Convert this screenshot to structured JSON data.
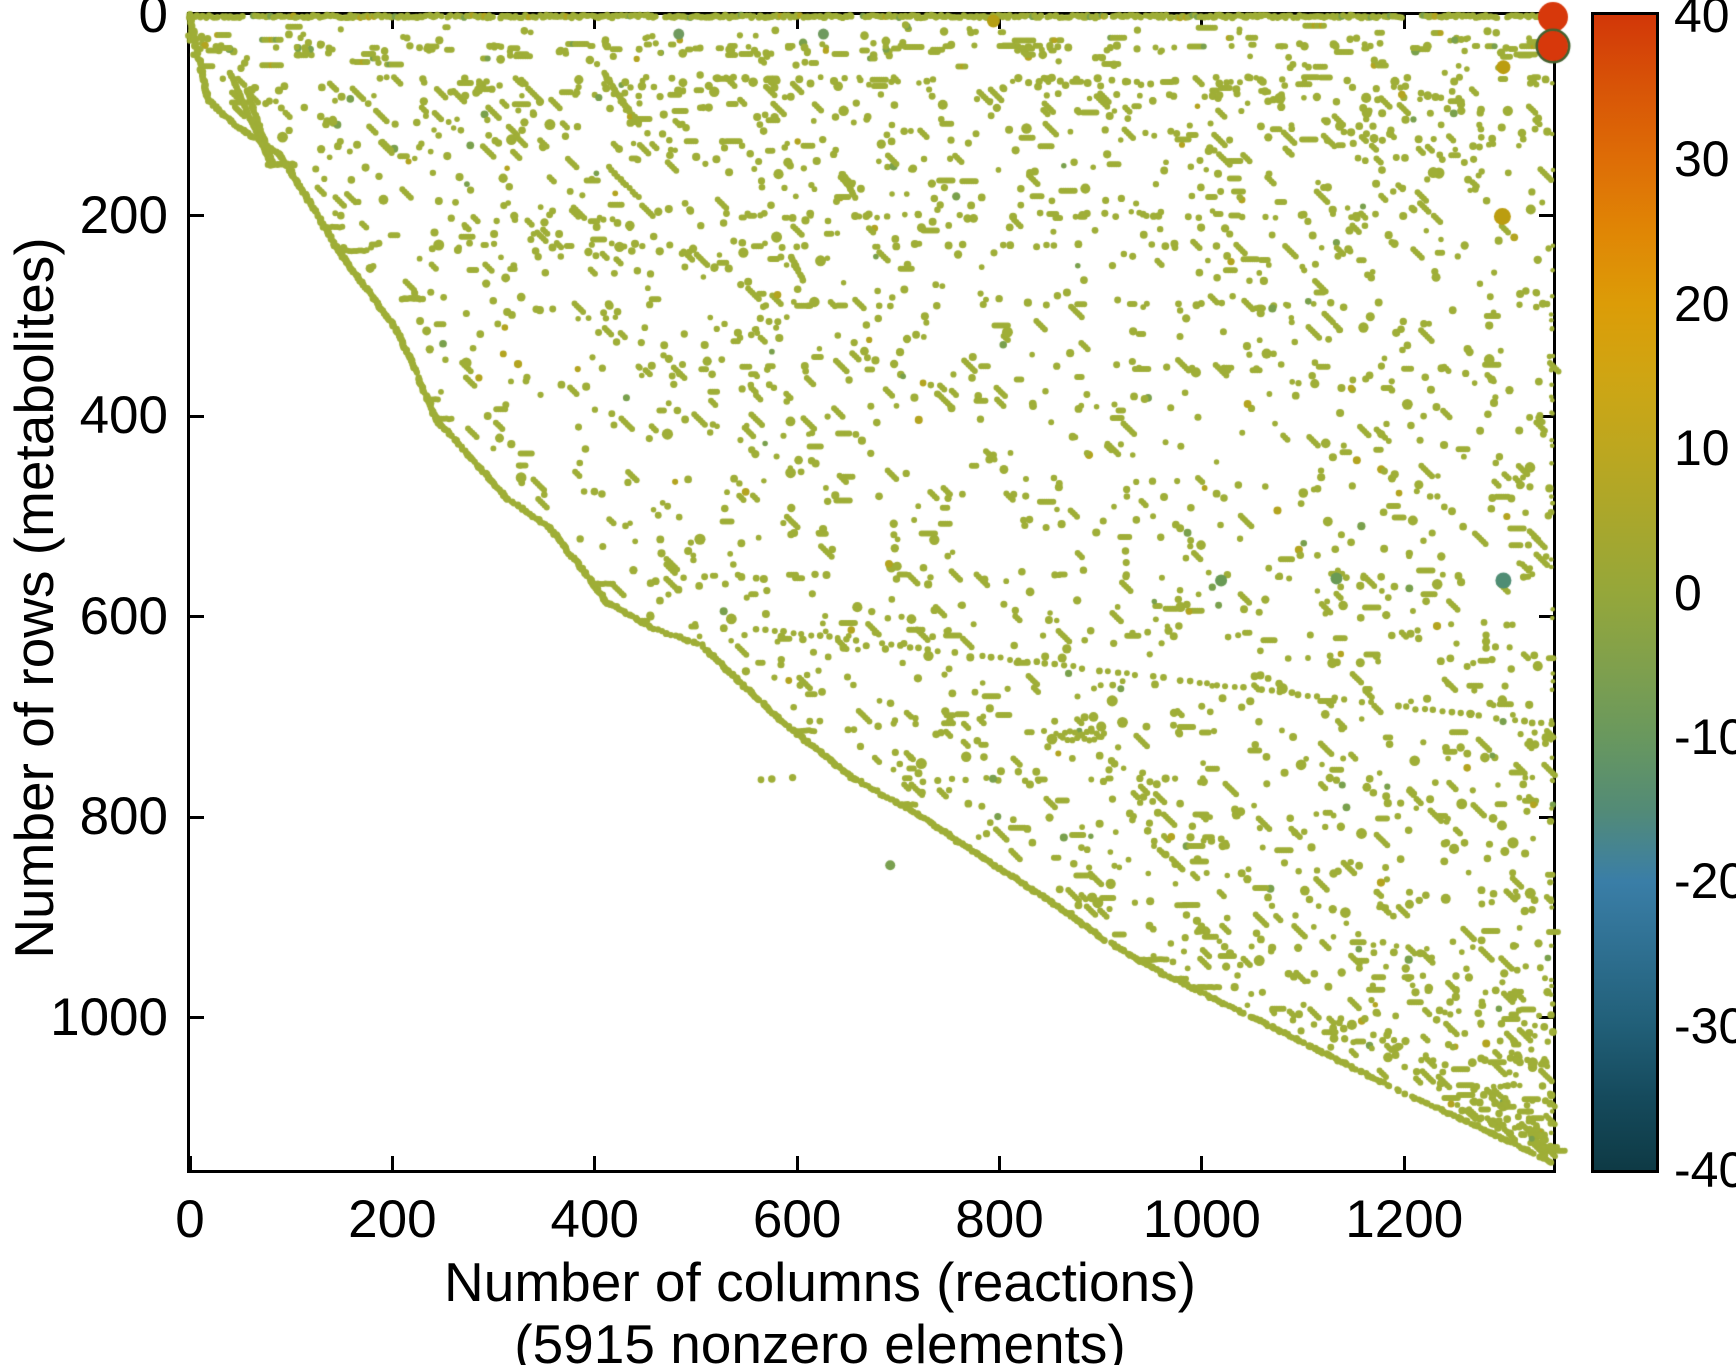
{
  "chart_data": {
    "type": "scatter",
    "title": "",
    "description": "Sparsity pattern (spy plot) of a metabolic stoichiometric matrix; each marker is a nonzero matrix entry, colored and sized by its coefficient value",
    "xlabel": "Number of columns (reactions)",
    "xlabel_note": "(5915 nonzero elements)",
    "ylabel": "Number of rows (metabolites)",
    "nonzero_elements": 5915,
    "xlim": [
      0,
      1347
    ],
    "ylim": [
      0,
      1152
    ],
    "y_axis_reversed": true,
    "grid": false,
    "x_ticks": [
      0,
      200,
      400,
      600,
      800,
      1000,
      1200
    ],
    "y_ticks": [
      0,
      200,
      400,
      600,
      800,
      1000
    ],
    "marker_color": "#9fae37",
    "marker_tints": [
      "#79a04c",
      "#b3a41f"
    ],
    "colorbar": {
      "min": -40,
      "max": 40,
      "ticks": [
        40,
        30,
        20,
        10,
        0,
        -10,
        -20,
        -30,
        -40
      ],
      "legend_position": "right",
      "gradient_stops": [
        {
          "value": 40,
          "color": "#d23708"
        },
        {
          "value": 35,
          "color": "#d85407"
        },
        {
          "value": 30,
          "color": "#de6d06"
        },
        {
          "value": 25,
          "color": "#e08605"
        },
        {
          "value": 20,
          "color": "#dc9c07"
        },
        {
          "value": 15,
          "color": "#cfa513"
        },
        {
          "value": 10,
          "color": "#bda71f"
        },
        {
          "value": 5,
          "color": "#a9a72c"
        },
        {
          "value": 0,
          "color": "#95a73a"
        },
        {
          "value": -5,
          "color": "#80a04c"
        },
        {
          "value": -10,
          "color": "#69985e"
        },
        {
          "value": -15,
          "color": "#538b76"
        },
        {
          "value": -20,
          "color": "#3a7ea7"
        },
        {
          "value": -25,
          "color": "#2e6f90"
        },
        {
          "value": -30,
          "color": "#215f78"
        },
        {
          "value": -35,
          "color": "#154a5c"
        },
        {
          "value": -40,
          "color": "#0e3a45"
        }
      ]
    },
    "notable_points": [
      {
        "col": 1347,
        "row": 2,
        "value": 40,
        "radius": 15,
        "color": "#d7380b"
      },
      {
        "col": 1347,
        "row": 31,
        "value": 38,
        "radius": 15,
        "color": "#d7380b",
        "ring": "#44612f"
      },
      {
        "col": 1298,
        "row": 52,
        "value": 14,
        "radius": 7,
        "color": "#bb9d10"
      },
      {
        "col": 1297,
        "row": 201,
        "value": 15,
        "radius": 8.5,
        "color": "#bb9d10"
      },
      {
        "col": 1019,
        "row": 564,
        "value": -8,
        "radius": 6,
        "color": "#699a55"
      },
      {
        "col": 1133,
        "row": 562,
        "value": -8,
        "radius": 6,
        "color": "#699a55"
      },
      {
        "col": 1298,
        "row": 564,
        "value": -12,
        "radius": 8,
        "color": "#4f8d74"
      },
      {
        "col": 794,
        "row": 6,
        "value": 12,
        "radius": 6.5,
        "color": "#b59f14"
      },
      {
        "col": 483,
        "row": 19,
        "value": -6,
        "radius": 5.5,
        "color": "#6f9a5f"
      },
      {
        "col": 626,
        "row": 19,
        "value": -6,
        "radius": 5.5,
        "color": "#6f9a5f"
      },
      {
        "col": 692,
        "row": 848,
        "value": -5,
        "radius": 5,
        "color": "#7aa050"
      }
    ],
    "pattern": {
      "seed": 1337,
      "dot_radius": 3.2,
      "diagonal": [
        [
          0,
          0
        ],
        [
          5,
          28
        ],
        [
          12,
          58
        ],
        [
          18,
          85
        ],
        [
          45,
          110
        ],
        [
          90,
          140
        ],
        [
          150,
          240
        ],
        [
          205,
          315
        ],
        [
          244,
          404
        ],
        [
          312,
          481
        ],
        [
          358,
          514
        ],
        [
          412,
          586
        ],
        [
          460,
          613
        ],
        [
          505,
          628
        ],
        [
          580,
          700
        ],
        [
          653,
          760
        ],
        [
          724,
          800
        ],
        [
          784,
          841
        ],
        [
          845,
          880
        ],
        [
          900,
          920
        ],
        [
          956,
          953
        ],
        [
          1050,
          1000
        ],
        [
          1104,
          1027
        ],
        [
          1200,
          1075
        ],
        [
          1290,
          1117
        ],
        [
          1347,
          1145
        ]
      ],
      "top_line": {
        "rows": [
          0,
          3
        ],
        "step": 2.2,
        "density": 0.93,
        "gaps": [
          [
            52,
            60
          ],
          [
            300,
            305
          ],
          [
            460,
            467
          ],
          [
            655,
            663
          ],
          [
            905,
            910
          ],
          [
            1198,
            1216
          ],
          [
            1292,
            1297
          ]
        ]
      },
      "band": {
        "rows": [
          8,
          62
        ],
        "items": 175,
        "regions": [
          [
            0,
            260,
            0.28
          ],
          [
            260,
            420,
            0.09
          ],
          [
            420,
            830,
            0.3
          ],
          [
            830,
            1140,
            0.13
          ],
          [
            1140,
            1347,
            0.2
          ]
        ]
      },
      "offshoots": [
        {
          "from": [
            40,
            58
          ],
          "to": [
            80,
            150
          ],
          "step": 2.5
        },
        {
          "from": [
            56,
            75
          ],
          "to": [
            82,
            148
          ],
          "step": 2.5
        },
        {
          "from": [
            77,
            149
          ],
          "to": [
            103,
            149
          ],
          "step": 2.4
        },
        {
          "from": [
            409,
            58
          ],
          "to": [
            443,
            109
          ],
          "step": 2.4
        },
        {
          "from": [
            414,
            152
          ],
          "to": [
            443,
            182
          ],
          "step": 3
        },
        {
          "from": [
            645,
            159
          ],
          "to": [
            657,
            182
          ],
          "step": 3
        },
        {
          "from": [
            594,
            241
          ],
          "to": [
            606,
            265
          ],
          "step": 3
        },
        {
          "from": [
            210,
            283
          ],
          "to": [
            230,
            283
          ],
          "step": 2.4
        }
      ],
      "chains": [
        {
          "from": [
            560,
            612
          ],
          "to": [
            1345,
            708
          ],
          "step": 9,
          "density": 0.82
        }
      ],
      "zigzag": {
        "cols": [
          860,
          904
        ],
        "row": 719,
        "amp": 4.5,
        "step": 2.4
      },
      "busy_rows": [
        {
          "row": 33,
          "cols": [
            0,
            1347
          ],
          "n": 55,
          "dash": 0.5
        },
        {
          "row": 200,
          "cols": [
            500,
            1220
          ],
          "n": 40,
          "dash": 0.3
        },
        {
          "row": 230,
          "cols": [
            140,
            1000
          ],
          "n": 28,
          "dash": 0.25
        },
        {
          "row": 290,
          "cols": [
            380,
            1150
          ],
          "n": 20,
          "dash": 0.2
        },
        {
          "row": 352,
          "cols": [
            420,
            1240
          ],
          "n": 18,
          "dash": 0.2
        },
        {
          "row": 560,
          "cols": [
            450,
            1330
          ],
          "n": 24,
          "dash": 0.2
        },
        {
          "row": 763,
          "cols": [
            560,
            1060
          ],
          "n": 20,
          "dash": 0.3
        }
      ],
      "clusters": [
        {
          "cols": [
            1150,
            1285
          ],
          "rows": [
            70,
            200
          ],
          "n": 26
        },
        {
          "cols": [
            260,
            520
          ],
          "rows": [
            185,
            260
          ],
          "n": 26
        },
        {
          "cols": [
            430,
            760
          ],
          "rows": [
            300,
            380
          ],
          "n": 24
        }
      ],
      "edge_column": {
        "col": 1345,
        "n": 46,
        "rows": [
          55,
          1125
        ],
        "radius": 2.3
      },
      "stair_flats": 12,
      "scatter": {
        "n": 2400,
        "row_min": 62,
        "row_bias": 1.55,
        "col_margin": 16
      }
    }
  }
}
